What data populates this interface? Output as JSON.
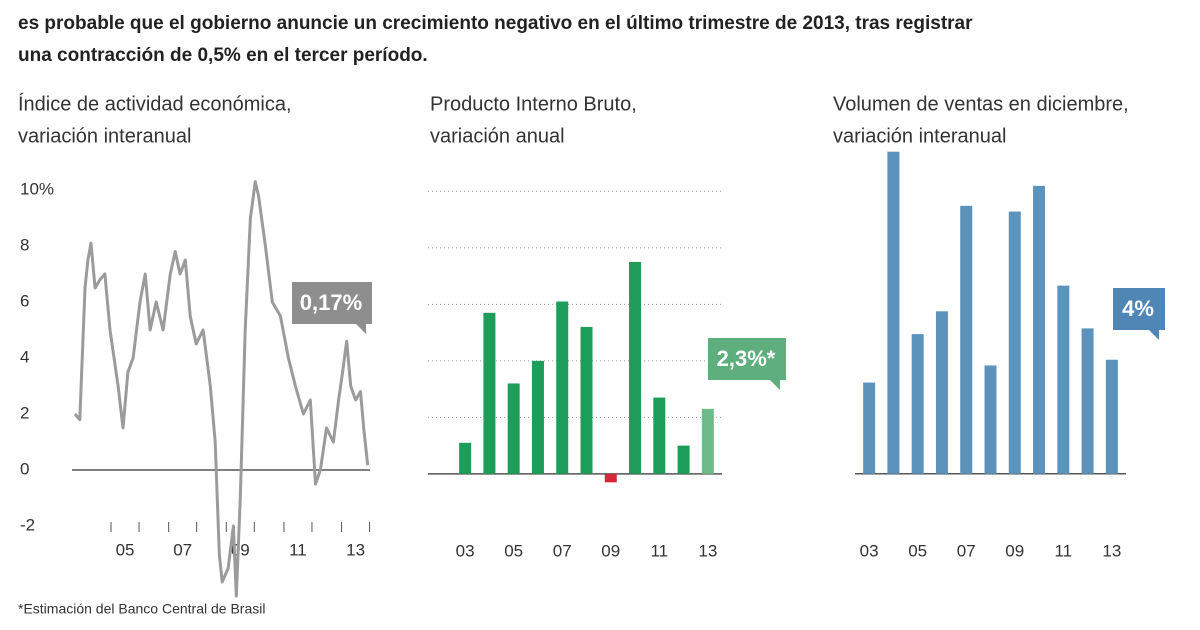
{
  "header": {
    "lines": [
      "es probable que el gobierno anuncie un crecimiento negativo en el último trimestre de 2013, tras registrar",
      "una contracción de 0,5% en el tercer período."
    ]
  },
  "footnote": "*Estimación del Banco Central de Brasil",
  "chart_data": [
    {
      "type": "line",
      "title": [
        "Índice de actividad económica,",
        "variación interanual"
      ],
      "x": [
        2003.26,
        2003.43,
        2003.61,
        2003.71,
        2003.82,
        2003.96,
        2004.13,
        2004.3,
        2004.48,
        2004.76,
        2004.93,
        2005.1,
        2005.28,
        2005.52,
        2005.7,
        2005.87,
        2006.08,
        2006.32,
        2006.57,
        2006.74,
        2006.91,
        2007.09,
        2007.26,
        2007.47,
        2007.71,
        2007.96,
        2008.13,
        2008.27,
        2008.37,
        2008.58,
        2008.76,
        2008.86,
        2009.0,
        2009.17,
        2009.35,
        2009.52,
        2009.63,
        2009.87,
        2010.11,
        2010.39,
        2010.67,
        2010.91,
        2011.19,
        2011.43,
        2011.61,
        2011.78,
        2011.99,
        2012.23,
        2012.41,
        2012.55,
        2012.69,
        2012.83,
        2013.0,
        2013.17,
        2013.28,
        2013.42
      ],
      "values": [
        2.0,
        1.8,
        6.5,
        7.5,
        8.1,
        6.5,
        6.8,
        7.0,
        5.0,
        3.0,
        1.5,
        3.5,
        4.0,
        6.0,
        7.0,
        5.0,
        6.0,
        5.0,
        7.0,
        7.8,
        7.0,
        7.5,
        5.5,
        4.5,
        5.0,
        3.0,
        1.0,
        -3.0,
        -4.0,
        -3.5,
        -2.0,
        -4.5,
        -1.0,
        5.0,
        9.0,
        10.3,
        9.8,
        8.0,
        6.0,
        5.5,
        4.0,
        3.0,
        2.0,
        2.5,
        -0.5,
        0.0,
        1.5,
        1.0,
        2.5,
        3.5,
        4.6,
        3.0,
        2.5,
        2.8,
        1.5,
        0.17
      ],
      "color": "#9b9b9b",
      "xlim": [
        2003.16,
        2013.5
      ],
      "ylim": [
        -4.6,
        10.4
      ],
      "yticks": [
        {
          "value": 10,
          "label": "10%"
        },
        8,
        6,
        4,
        2,
        0,
        -2
      ],
      "xticks": [
        {
          "value": 2005,
          "label": "05"
        },
        {
          "value": 2007,
          "label": "07"
        },
        {
          "value": 2009,
          "label": "09"
        },
        {
          "value": 2011,
          "label": "11"
        },
        {
          "value": 2013,
          "label": "13"
        }
      ],
      "annotation": "0,17%",
      "annotation_color": "#8e8e8e",
      "grid": false
    },
    {
      "type": "bar",
      "title": [
        "Producto Interno Bruto,",
        "variación anual"
      ],
      "categories": [
        "03",
        null,
        "05",
        null,
        "07",
        null,
        "09",
        null,
        "11",
        null,
        "13"
      ],
      "values": [
        1.1,
        5.7,
        3.2,
        4.0,
        6.1,
        5.2,
        -0.3,
        7.5,
        2.7,
        1.0,
        2.3
      ],
      "colors": [
        "#1e9c5a",
        "#1e9c5a",
        "#1e9c5a",
        "#1e9c5a",
        "#1e9c5a",
        "#1e9c5a",
        "#d6283a",
        "#1e9c5a",
        "#1e9c5a",
        "#1e9c5a",
        "#6dbb8b"
      ],
      "ylim": [
        -0.5,
        10.4
      ],
      "yticks": [
        0,
        2,
        4,
        6,
        8,
        10
      ],
      "annotation": "2,3%*",
      "annotation_color": "#5fae7e",
      "grid": true
    },
    {
      "type": "bar",
      "title": [
        "Volumen de ventas en diciembre,",
        "variación interanual"
      ],
      "categories": [
        "03",
        null,
        "05",
        null,
        "07",
        null,
        "09",
        null,
        "11",
        null,
        "13"
      ],
      "values": [
        3.2,
        11.3,
        4.9,
        5.7,
        9.4,
        3.8,
        9.2,
        10.1,
        6.6,
        5.1,
        4.0
      ],
      "color": "#5b93bd",
      "ylim": [
        -0.5,
        11.5
      ],
      "yticks": [
        0
      ],
      "annotation": "4%",
      "annotation_color": "#4f86b5",
      "grid": false
    }
  ]
}
